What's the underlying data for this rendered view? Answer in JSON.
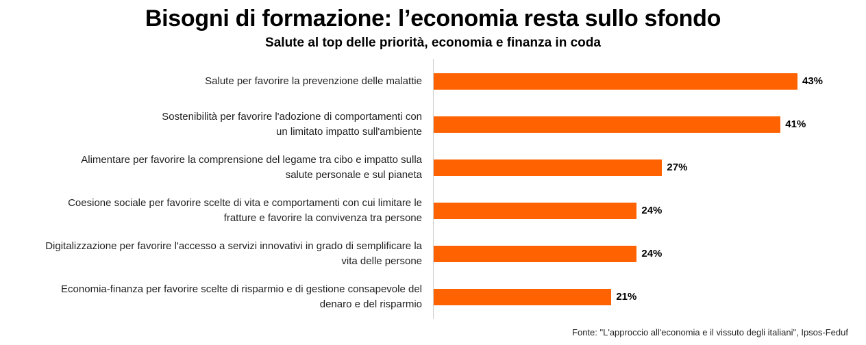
{
  "header": {
    "title": "Bisogni di formazione: l’economia resta sullo sfondo",
    "subtitle": "Salute al top delle priorità, economia e finanza in coda"
  },
  "chart_data": {
    "type": "bar",
    "orientation": "horizontal",
    "title": "Bisogni di formazione: l’economia resta sullo sfondo",
    "subtitle": "Salute al top delle priorità, economia e finanza in coda",
    "categories": [
      [
        "Salute per favorire la prevenzione delle malattie"
      ],
      [
        "Sostenibilità per favorire l'adozione di comportamenti con",
        "un limitato impatto sull'ambiente"
      ],
      [
        "Alimentare per favorire la comprensione del legame tra cibo e impatto sulla",
        "salute personale e sul pianeta"
      ],
      [
        "Coesione sociale per favorire scelte di vita e comportamenti con cui limitare le",
        "fratture e favorire la convivenza tra persone"
      ],
      [
        "Digitalizzazione per favorire l'accesso a servizi innovativi in grado di semplificare la",
        "vita delle persone"
      ],
      [
        "Economia-finanza per favorire scelte di risparmio e di gestione consapevole del",
        "denaro e del risparmio"
      ]
    ],
    "values": [
      43,
      41,
      27,
      24,
      24,
      21
    ],
    "value_labels": [
      "43%",
      "41%",
      "27%",
      "24%",
      "24%",
      "21%"
    ],
    "unit": "%",
    "xlim": [
      0,
      50
    ],
    "xlabel": "",
    "ylabel": "",
    "grid": false,
    "bar_color": "#ff6200"
  },
  "footer": {
    "source": "Fonte: \"L'approccio all'economia e il vissuto degli italiani\", Ipsos-Feduf"
  }
}
